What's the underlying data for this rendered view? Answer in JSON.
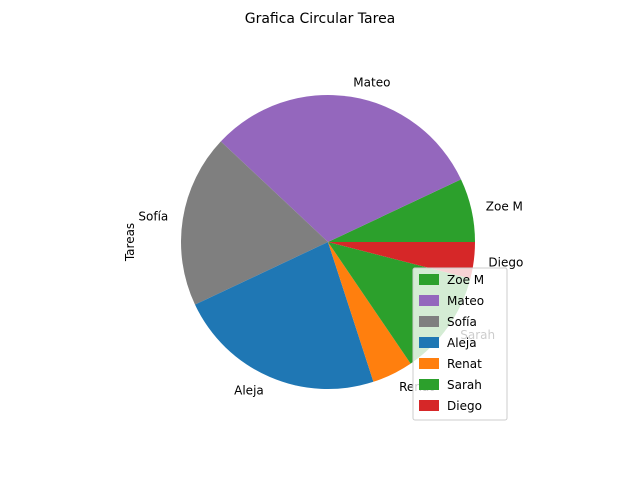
{
  "chart_data": {
    "type": "pie",
    "title": "Grafica Circular Tarea",
    "ylabel": "Tareas",
    "start_angle_deg": 0,
    "direction": "counterclockwise",
    "categories": [
      "Zoe M",
      "Mateo",
      "Sofía",
      "Aleja",
      "Renat",
      "Sarah",
      "Diego"
    ],
    "values": [
      7,
      31,
      19,
      23,
      4.5,
      11.5,
      4
    ],
    "colors": [
      "#2ca02c",
      "#9467bd",
      "#7f7f7f",
      "#1f77b4",
      "#ff7f0e",
      "#2ca02c",
      "#d62728"
    ],
    "legend_position": "lower-right"
  }
}
